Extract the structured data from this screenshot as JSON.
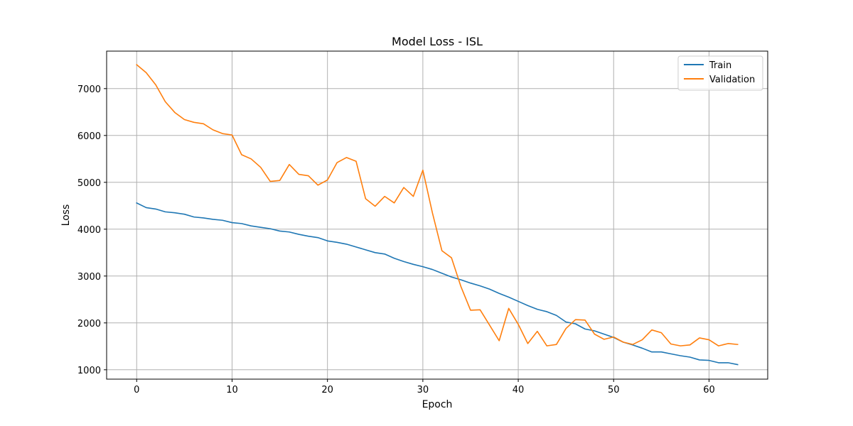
{
  "chart_data": {
    "type": "line",
    "title": "Model Loss - ISL",
    "xlabel": "Epoch",
    "ylabel": "Loss",
    "xlim": [
      -3.15,
      66.15
    ],
    "ylim": [
      800,
      7800
    ],
    "xticks": [
      0,
      10,
      20,
      30,
      40,
      50,
      60
    ],
    "yticks": [
      1000,
      2000,
      3000,
      4000,
      5000,
      6000,
      7000
    ],
    "grid": true,
    "legend_position": "top-right",
    "series": [
      {
        "name": "Train",
        "color": "#1f77b4",
        "x": [
          0,
          1,
          2,
          3,
          4,
          5,
          6,
          7,
          8,
          9,
          10,
          11,
          12,
          13,
          14,
          15,
          16,
          17,
          18,
          19,
          20,
          21,
          22,
          23,
          24,
          25,
          26,
          27,
          28,
          29,
          30,
          31,
          32,
          33,
          34,
          35,
          36,
          37,
          38,
          39,
          40,
          41,
          42,
          43,
          44,
          45,
          46,
          47,
          48,
          49,
          50,
          51,
          52,
          53,
          54,
          55,
          56,
          57,
          58,
          59,
          60,
          61,
          62,
          63
        ],
        "values": [
          4560,
          4460,
          4430,
          4370,
          4350,
          4320,
          4260,
          4240,
          4210,
          4190,
          4140,
          4120,
          4070,
          4040,
          4010,
          3960,
          3940,
          3890,
          3850,
          3820,
          3750,
          3720,
          3680,
          3620,
          3560,
          3500,
          3470,
          3380,
          3310,
          3250,
          3200,
          3140,
          3060,
          2980,
          2920,
          2850,
          2790,
          2720,
          2630,
          2550,
          2460,
          2370,
          2290,
          2240,
          2160,
          2020,
          1980,
          1870,
          1830,
          1760,
          1690,
          1590,
          1530,
          1460,
          1380,
          1380,
          1340,
          1300,
          1270,
          1210,
          1200,
          1150,
          1150,
          1110
        ]
      },
      {
        "name": "Validation",
        "color": "#ff7f0e",
        "x": [
          0,
          1,
          2,
          3,
          4,
          5,
          6,
          7,
          8,
          9,
          10,
          11,
          12,
          13,
          14,
          15,
          16,
          17,
          18,
          19,
          20,
          21,
          22,
          23,
          24,
          25,
          26,
          27,
          28,
          29,
          30,
          31,
          32,
          33,
          34,
          35,
          36,
          37,
          38,
          39,
          40,
          41,
          42,
          43,
          44,
          45,
          46,
          47,
          48,
          49,
          50,
          51,
          52,
          53,
          54,
          55,
          56,
          57,
          58,
          59,
          60,
          61,
          62,
          63
        ],
        "values": [
          7510,
          7340,
          7080,
          6720,
          6490,
          6340,
          6280,
          6250,
          6120,
          6040,
          6010,
          5590,
          5500,
          5320,
          5020,
          5040,
          5380,
          5170,
          5140,
          4940,
          5050,
          5420,
          5530,
          5450,
          4650,
          4490,
          4700,
          4560,
          4890,
          4700,
          5260,
          4350,
          3540,
          3390,
          2770,
          2270,
          2280,
          1950,
          1620,
          2310,
          1970,
          1560,
          1820,
          1510,
          1540,
          1880,
          2070,
          2060,
          1760,
          1650,
          1700,
          1590,
          1540,
          1640,
          1850,
          1790,
          1550,
          1510,
          1530,
          1680,
          1640,
          1510,
          1560,
          1540
        ]
      }
    ]
  }
}
